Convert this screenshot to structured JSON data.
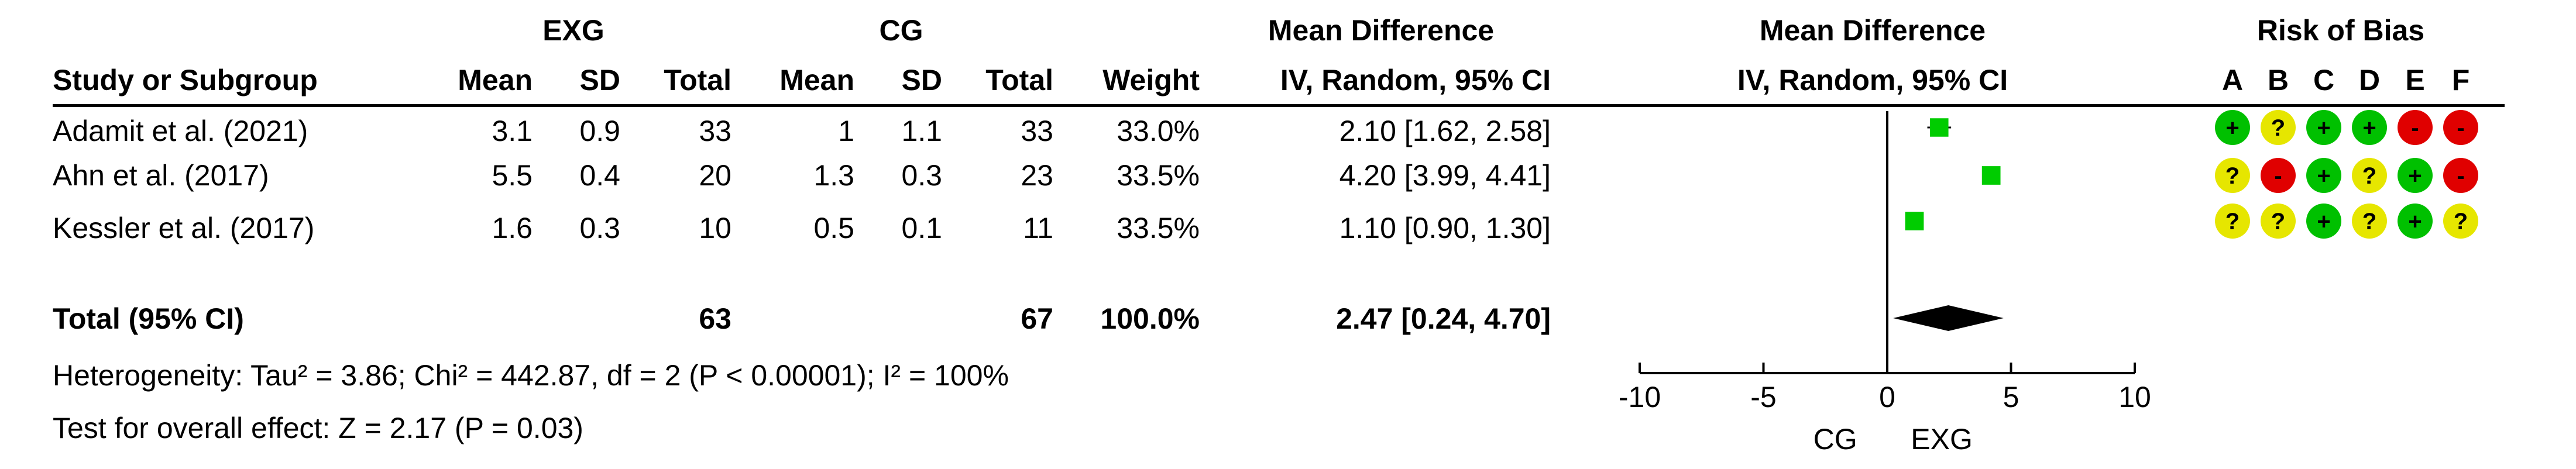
{
  "header": {
    "group1": "EXG",
    "group2": "CG",
    "md_top": "Mean Difference",
    "md_plot_top": "Mean Difference",
    "rob_title": "Risk of Bias",
    "study": "Study or Subgroup",
    "mean1": "Mean",
    "sd1": "SD",
    "total1": "Total",
    "mean2": "Mean",
    "sd2": "SD",
    "total2": "Total",
    "weight": "Weight",
    "md_method": "IV, Random, 95% CI",
    "md_plot_method": "IV, Random, 95% CI",
    "rob_letters": [
      "A",
      "B",
      "C",
      "D",
      "E",
      "F"
    ]
  },
  "studies": [
    {
      "name": "Adamit et al. (2021)",
      "mean1": "3.1",
      "sd1": "0.9",
      "total1": "33",
      "mean2": "1",
      "sd2": "1.1",
      "total2": "33",
      "weight": "33.0%",
      "md_text": "2.10 [1.62, 2.58]",
      "rob": [
        "+",
        "?",
        "+",
        "+",
        "-",
        "-"
      ]
    },
    {
      "name": "Ahn et al. (2017)",
      "mean1": "5.5",
      "sd1": "0.4",
      "total1": "20",
      "mean2": "1.3",
      "sd2": "0.3",
      "total2": "23",
      "weight": "33.5%",
      "md_text": "4.20 [3.99, 4.41]",
      "rob": [
        "?",
        "-",
        "+",
        "?",
        "+",
        "-"
      ]
    },
    {
      "name": "Kessler et al. (2017)",
      "mean1": "1.6",
      "sd1": "0.3",
      "total1": "10",
      "mean2": "0.5",
      "sd2": "0.1",
      "total2": "11",
      "weight": "33.5%",
      "md_text": "1.10 [0.90, 1.30]",
      "rob": [
        "?",
        "?",
        "+",
        "?",
        "+",
        "?"
      ]
    }
  ],
  "total": {
    "label": "Total (95% CI)",
    "total1": "63",
    "total2": "67",
    "weight": "100.0%",
    "md_text": "2.47 [0.24, 4.70]"
  },
  "heterogeneity": "Heterogeneity: Tau² = 3.86; Chi² = 442.87, df = 2 (P < 0.00001); I² = 100%",
  "overall_effect": "Test for overall effect: Z = 2.17 (P = 0.03)",
  "rob_colors": {
    "+": "#00c000",
    "?": "#e6e600",
    "-": "#e00000"
  },
  "chart_data": {
    "type": "scatter",
    "subtype": "forest-plot",
    "x_axis": {
      "range": [
        -10,
        10
      ],
      "ticks": [
        -10,
        -5,
        0,
        5,
        10
      ],
      "tick_labels": [
        "-10",
        "-5",
        "0",
        "5",
        "10"
      ],
      "left_label": "CG",
      "right_label": "EXG"
    },
    "studies": [
      {
        "name": "Adamit et al. (2021)",
        "md": 2.1,
        "ci": [
          1.62,
          2.58
        ],
        "weight": 33.0
      },
      {
        "name": "Ahn et al. (2017)",
        "md": 4.2,
        "ci": [
          3.99,
          4.41
        ],
        "weight": 33.5
      },
      {
        "name": "Kessler et al. (2017)",
        "md": 1.1,
        "ci": [
          0.9,
          1.3
        ],
        "weight": 33.5
      }
    ],
    "pooled": {
      "md": 2.47,
      "ci": [
        0.24,
        4.7
      ]
    },
    "colors": {
      "study_marker": "#00cc00",
      "diamond": "#000000"
    }
  }
}
